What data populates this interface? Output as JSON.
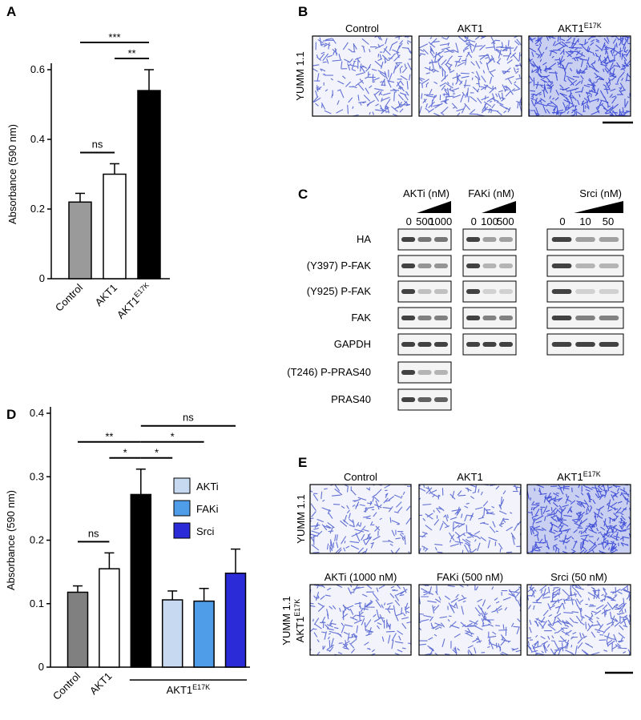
{
  "chart_data": [
    {
      "type": "bar",
      "panel": "A",
      "categories": [
        "Control",
        "AKT1",
        "AKT1"
      ],
      "category_superscripts": [
        null,
        null,
        "E17K"
      ],
      "values": [
        0.22,
        0.3,
        0.54
      ],
      "errors": [
        0.025,
        0.03,
        0.06
      ],
      "colors": [
        "#9a9a9a",
        "#ffffff",
        "#000000"
      ],
      "y_label": "Absorbance (590 nm)",
      "ylim": [
        0,
        0.6
      ],
      "yticks": [
        0,
        0.2,
        0.4,
        0.6
      ],
      "significance": [
        {
          "label": "ns",
          "between": [
            0,
            1
          ]
        },
        {
          "label": "**",
          "between": [
            1,
            2
          ]
        },
        {
          "label": "***",
          "between": [
            0,
            2
          ]
        }
      ]
    },
    {
      "type": "bar",
      "panel": "D",
      "categories": [
        "Control",
        "AKT1",
        null,
        null,
        null,
        null
      ],
      "category_superscripts": [
        null,
        null,
        null,
        null,
        null,
        null
      ],
      "values": [
        0.118,
        0.155,
        0.272,
        0.106,
        0.104,
        0.148
      ],
      "errors": [
        0.01,
        0.025,
        0.04,
        0.014,
        0.02,
        0.038
      ],
      "colors": [
        "#808080",
        "#ffffff",
        "#000000",
        "#c6d9f1",
        "#4f9de8",
        "#2b2bd8"
      ],
      "group_label": {
        "text": "AKT1",
        "sup": "E17K"
      },
      "legend": [
        {
          "name": "AKTi",
          "color": "#c6d9f1"
        },
        {
          "name": "FAKi",
          "color": "#4f9de8"
        },
        {
          "name": "Srci",
          "color": "#2b2bd8"
        }
      ],
      "y_label": "Absorbance (590 nm)",
      "ylim": [
        0,
        0.4
      ],
      "yticks": [
        0,
        0.1,
        0.2,
        0.3,
        0.4
      ],
      "significance": [
        {
          "label": "ns",
          "between": [
            0,
            1
          ]
        },
        {
          "label": "*",
          "between": [
            2,
            3
          ]
        },
        {
          "label": "*",
          "between": [
            1,
            2
          ]
        },
        {
          "label": "*",
          "between": [
            2,
            4
          ]
        },
        {
          "label": "**",
          "between": [
            0,
            2
          ]
        },
        {
          "label": "ns",
          "between": [
            2,
            5
          ]
        }
      ]
    }
  ],
  "panel_b": {
    "label": "B",
    "row_label": "YUMM 1.1",
    "columns": [
      {
        "text": "Control",
        "sup": null
      },
      {
        "text": "AKT1",
        "sup": null
      },
      {
        "text": "AKT1",
        "sup": "E17K"
      }
    ]
  },
  "panel_c": {
    "label": "C",
    "groups": [
      {
        "title": "AKTi (nM)",
        "doses": [
          "0",
          "500",
          "1000"
        ]
      },
      {
        "title": "FAKi (nM)",
        "doses": [
          "0",
          "100",
          "500"
        ]
      },
      {
        "title": "Srci (nM)",
        "doses": [
          "0",
          "10",
          "50"
        ]
      }
    ],
    "rows": [
      "HA",
      "(Y397) P-FAK",
      "(Y925) P-FAK",
      "FAK",
      "GAPDH",
      "(T246)  P-PRAS40",
      "PRAS40"
    ]
  },
  "panel_e": {
    "label": "E",
    "row_labels": [
      {
        "text": "YUMM 1.1",
        "sup": null
      },
      {
        "text": "YUMM 1.1",
        "line2": "AKT1",
        "sup": "E17K"
      }
    ],
    "columns": [
      {
        "text": "Control",
        "sup": null
      },
      {
        "text": "AKT1",
        "sup": null
      },
      {
        "text": "AKT1",
        "sup": "E17K"
      },
      {
        "text": "AKTi (1000 nM)",
        "sup": null
      },
      {
        "text": "FAKi (500 nM)",
        "sup": null
      },
      {
        "text": "Srci (50 nM)",
        "sup": null
      }
    ]
  }
}
